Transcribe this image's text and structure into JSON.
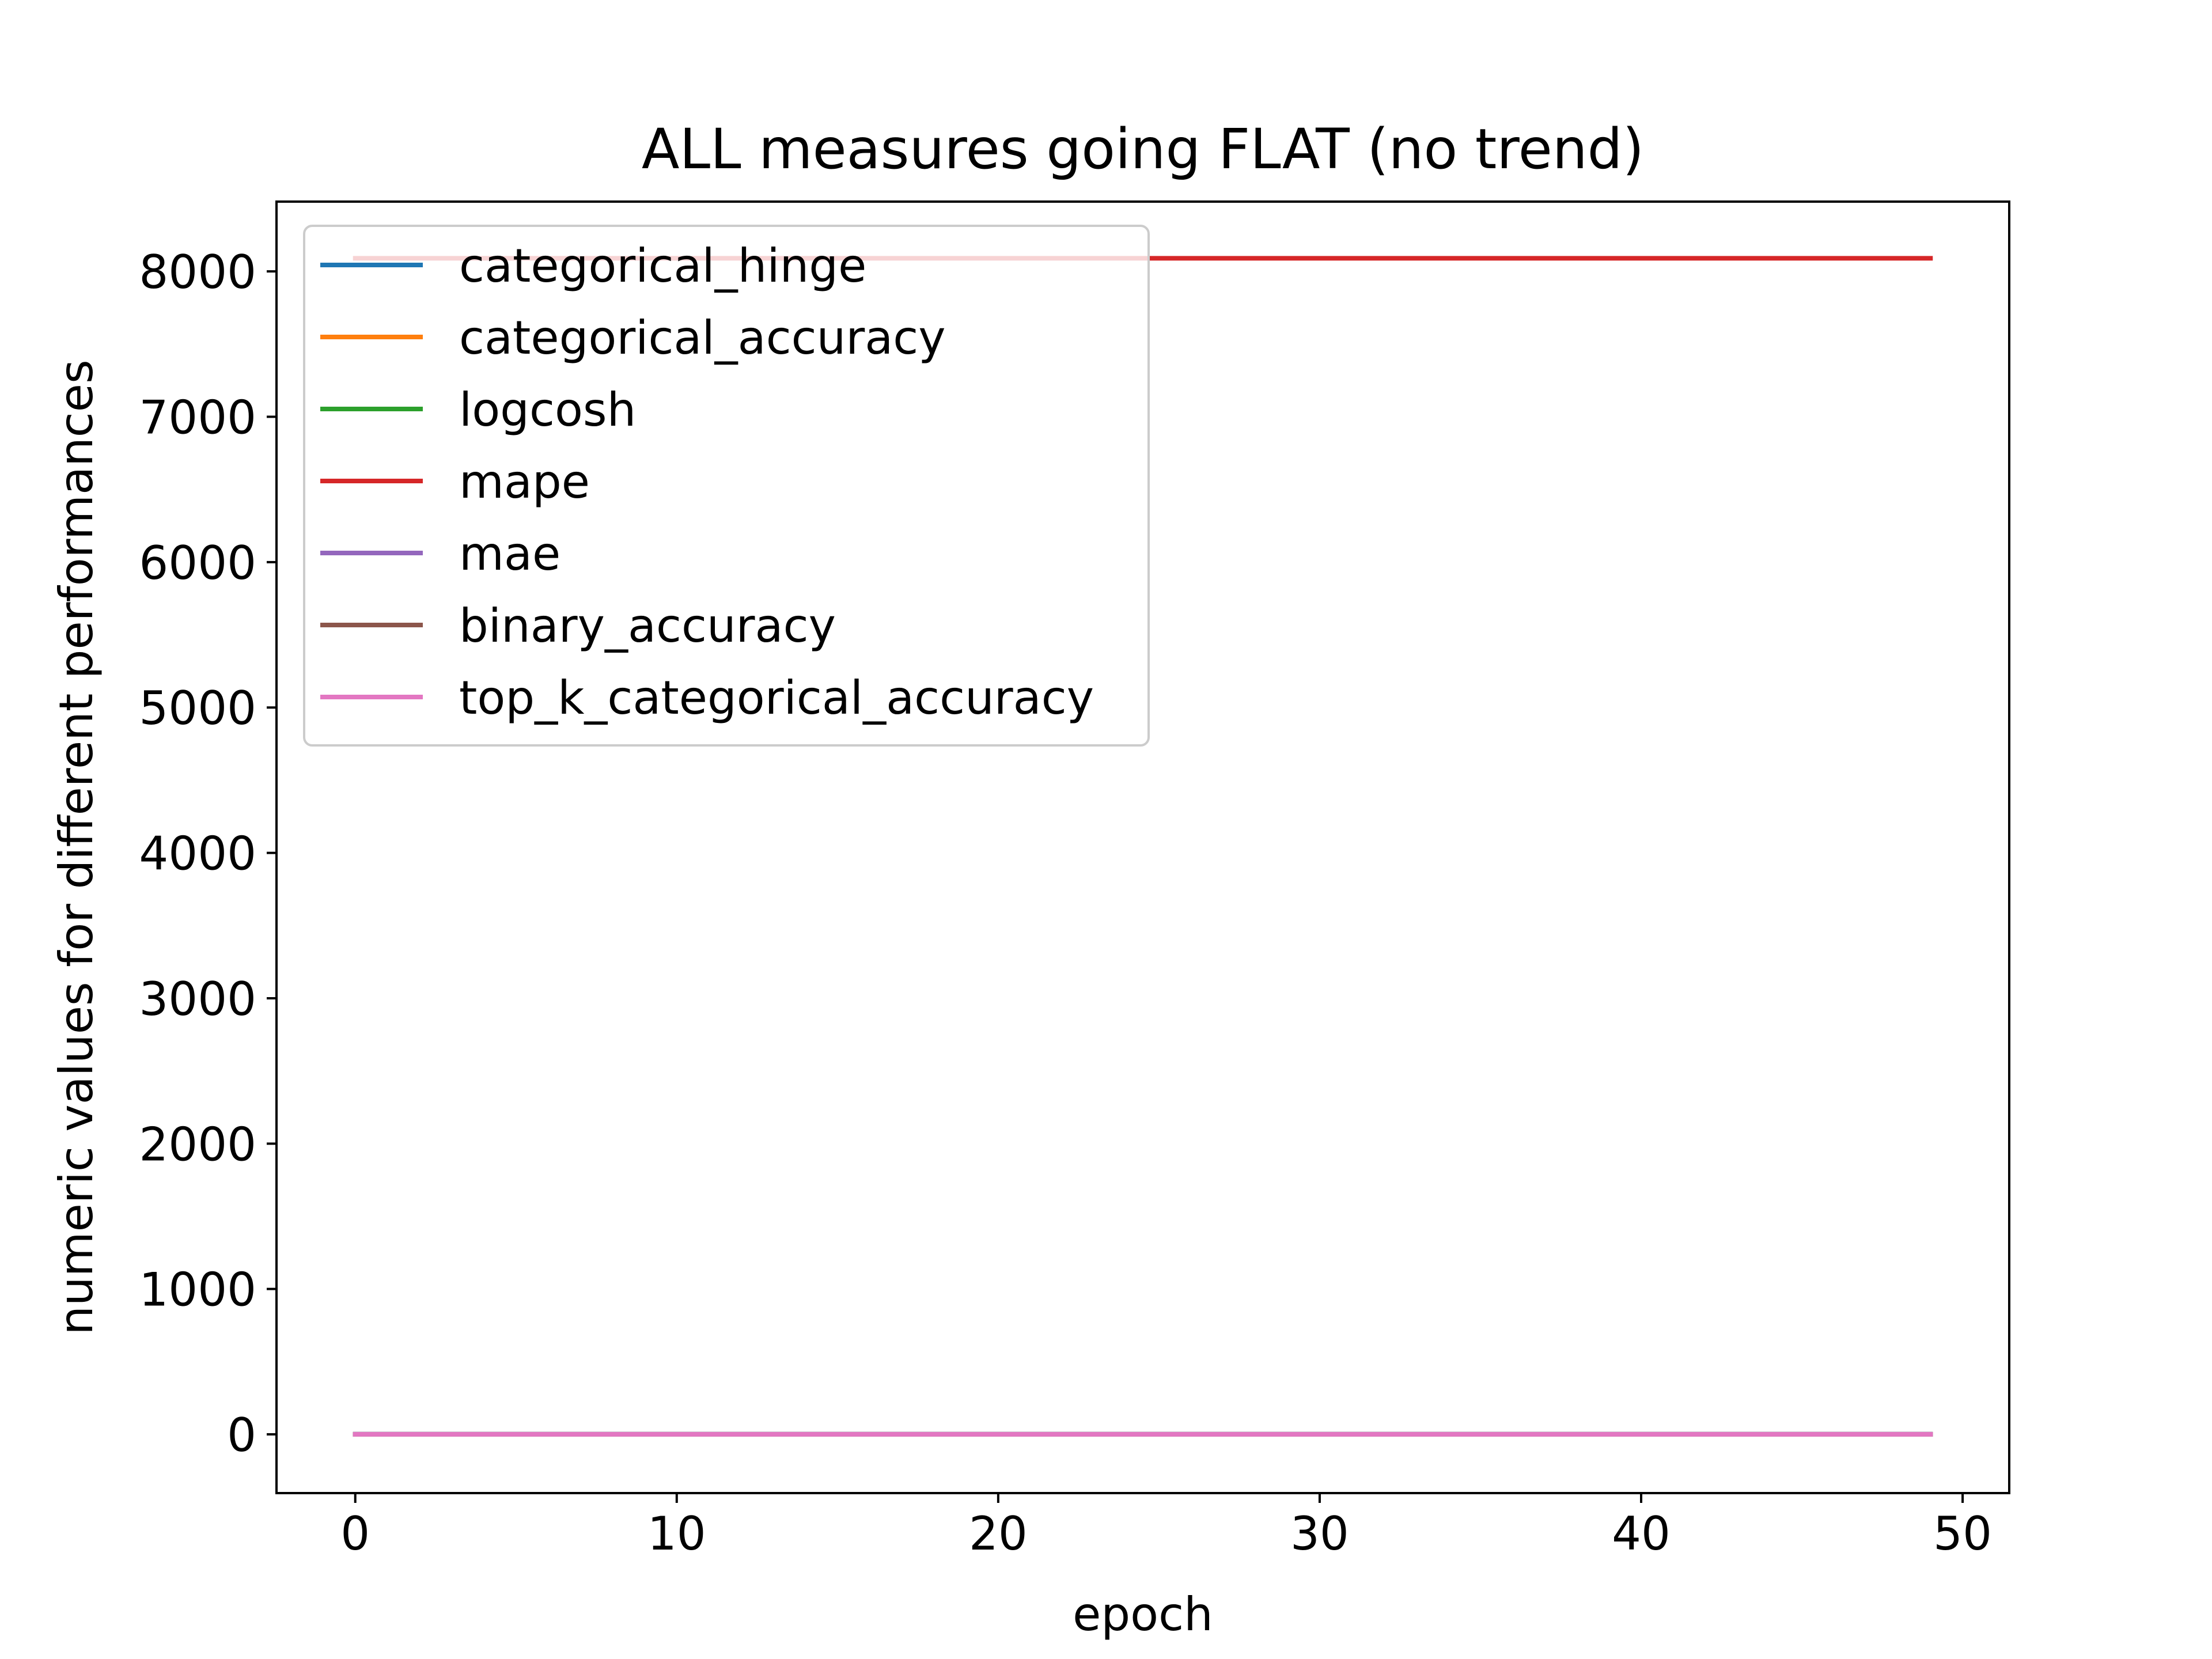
{
  "chart_data": {
    "type": "line",
    "title": "ALL measures going FLAT (no trend)",
    "xlabel": "epoch",
    "ylabel": "numeric values for different performances",
    "xlim": [
      -2.45,
      51.45
    ],
    "ylim": [
      -404,
      8480
    ],
    "xticks": [
      0,
      10,
      20,
      30,
      40,
      50
    ],
    "yticks": [
      0,
      1000,
      2000,
      3000,
      4000,
      5000,
      6000,
      7000,
      8000
    ],
    "grid": false,
    "legend_position": "upper left",
    "x_range": [
      0,
      49
    ],
    "series": [
      {
        "name": "categorical_hinge",
        "color": "#1f77b4",
        "value": 1.0
      },
      {
        "name": "categorical_accuracy",
        "color": "#ff7f0e",
        "value": 0.1
      },
      {
        "name": "logcosh",
        "color": "#2ca02c",
        "value": 0.5
      },
      {
        "name": "mape",
        "color": "#d62728",
        "value": 8090
      },
      {
        "name": "mae",
        "color": "#9467bd",
        "value": 0.9
      },
      {
        "name": "binary_accuracy",
        "color": "#8c564b",
        "value": 0.85
      },
      {
        "name": "top_k_categorical_accuracy",
        "color": "#e377c2",
        "value": 0.5
      }
    ]
  }
}
